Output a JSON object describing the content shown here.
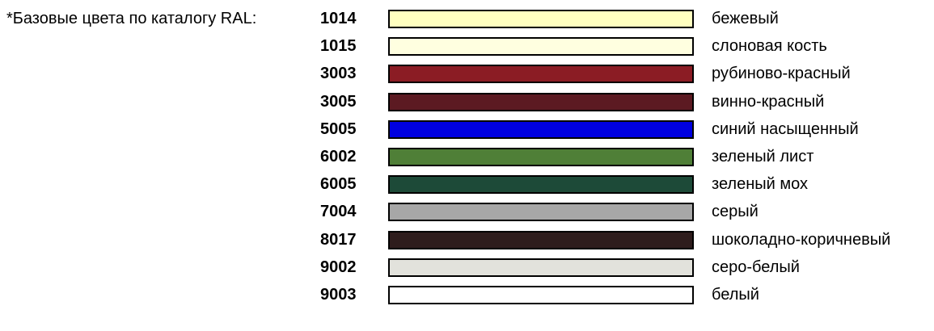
{
  "heading": "*Базовые цвета по каталогу RAL:",
  "colors": [
    {
      "code": "1014",
      "name": "бежевый",
      "hex": "#FFFFC0"
    },
    {
      "code": "1015",
      "name": "слоновая кость",
      "hex": "#FFFFE0"
    },
    {
      "code": "3003",
      "name": "рубиново-красный",
      "hex": "#8B1C24"
    },
    {
      "code": "3005",
      "name": "винно-красный",
      "hex": "#5C1A22"
    },
    {
      "code": "5005",
      "name": "синий насыщенный",
      "hex": "#0000E0"
    },
    {
      "code": "6002",
      "name": "зеленый лист",
      "hex": "#4F7F37"
    },
    {
      "code": "6005",
      "name": "зеленый мох",
      "hex": "#1D4A38"
    },
    {
      "code": "7004",
      "name": "серый",
      "hex": "#A7A7A7"
    },
    {
      "code": "8017",
      "name": "шоколадно-коричневый",
      "hex": "#2E1C1C"
    },
    {
      "code": "9002",
      "name": "серо-белый",
      "hex": "#E2E2DC"
    },
    {
      "code": "9003",
      "name": "белый",
      "hex": "#FFFFFF"
    }
  ]
}
